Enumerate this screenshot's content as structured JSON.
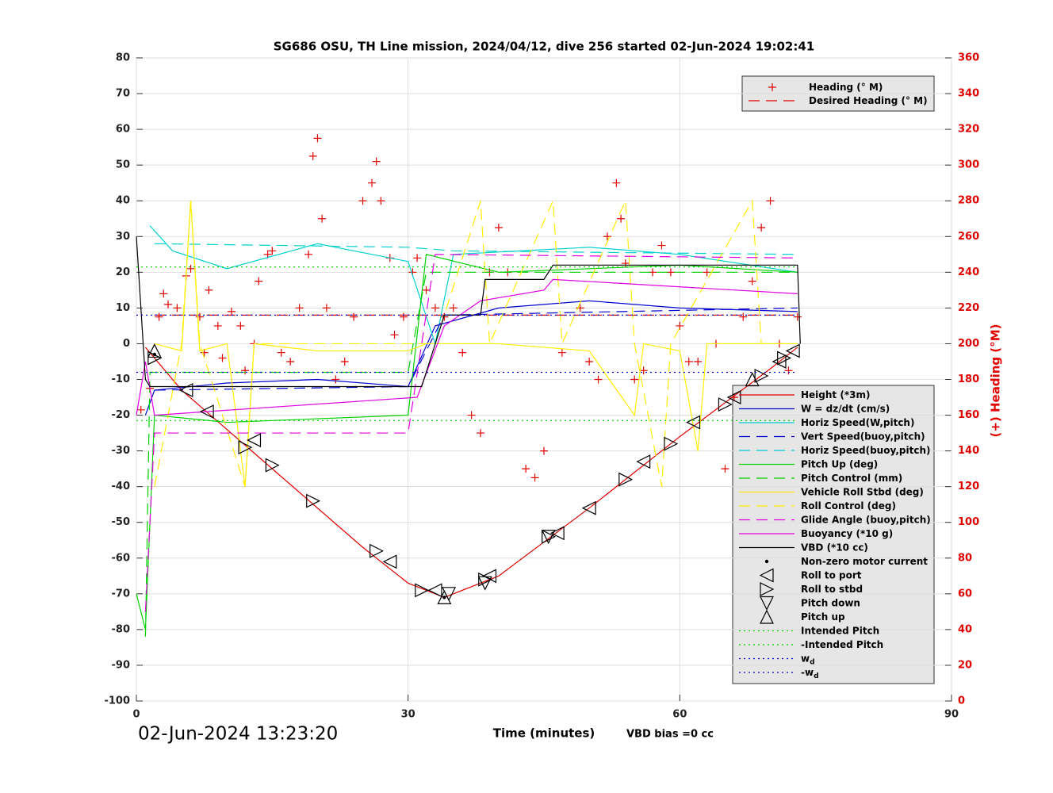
{
  "chart_data": {
    "type": "line",
    "title": "SG686 OSU, TH Line mission, 2024/04/12, dive 256 started 02-Jun-2024 19:02:41",
    "x_label": "Time (minutes)",
    "y2_label": "(+) Heading (°M)",
    "timestamp": "02-Jun-2024 13:23:20",
    "note": "VBD bias =0 cc",
    "xlim": [
      0,
      90
    ],
    "xticks": [
      0,
      30,
      60,
      90
    ],
    "ylim": [
      -100,
      80
    ],
    "yticks": [
      -100,
      -90,
      -80,
      -70,
      -60,
      -50,
      -40,
      -30,
      -20,
      -10,
      0,
      10,
      20,
      30,
      40,
      50,
      60,
      70,
      80
    ],
    "y2lim": [
      0,
      360
    ],
    "y2ticks": [
      0,
      20,
      40,
      60,
      80,
      100,
      120,
      140,
      160,
      180,
      200,
      220,
      240,
      260,
      280,
      300,
      320,
      340,
      360
    ],
    "grid": true,
    "series": [
      {
        "name": "Heading (° M)",
        "color": "#e00000",
        "style": "markers",
        "marker": "plus",
        "axis": "y2",
        "x": [
          0.5,
          1.5,
          2.5,
          3,
          3.5,
          4.5,
          5.5,
          6,
          7,
          7.5,
          8,
          9,
          9.5,
          10.5,
          11.5,
          12,
          13,
          13.5,
          14.5,
          15,
          16,
          17,
          18,
          19,
          19.5,
          20,
          20.5,
          21,
          22,
          23,
          24,
          25,
          26,
          26.5,
          27,
          28,
          28.5,
          29.5,
          30.5,
          31,
          32,
          33,
          34,
          35,
          36,
          37,
          38,
          39,
          40,
          41,
          43,
          44,
          45,
          47,
          49,
          50,
          51,
          52,
          53,
          53.5,
          54,
          55,
          56,
          57,
          58,
          59,
          60,
          61,
          62,
          63,
          64,
          65,
          66,
          67,
          68,
          69,
          70,
          71,
          72,
          73
        ],
        "values": [
          163,
          175,
          215,
          228,
          222,
          220,
          238,
          242,
          215,
          195,
          230,
          210,
          192,
          218,
          210,
          185,
          200,
          235,
          250,
          252,
          195,
          190,
          220,
          250,
          305,
          315,
          270,
          220,
          180,
          190,
          215,
          280,
          290,
          302,
          280,
          248,
          205,
          215,
          240,
          248,
          230,
          220,
          215,
          220,
          195,
          160,
          150,
          240,
          265,
          240,
          130,
          125,
          140,
          195,
          220,
          190,
          180,
          260,
          290,
          270,
          245,
          180,
          185,
          240,
          255,
          240,
          210,
          190,
          190,
          240,
          200,
          130,
          170,
          215,
          235,
          265,
          280,
          200,
          185,
          215
        ]
      },
      {
        "name": "Desired Heading (° M)",
        "color": "#e00000",
        "style": "dashed",
        "axis": "y2",
        "x": [
          2,
          73
        ],
        "values": [
          216,
          216
        ]
      },
      {
        "name": "Height (*3m)",
        "color": "#e00000",
        "style": "solid",
        "x": [
          1,
          5,
          15,
          25,
          30,
          34,
          40,
          50,
          60,
          70,
          73
        ],
        "values": [
          -1,
          -13,
          -35,
          -57,
          -67,
          -71,
          -65,
          -46,
          -26,
          -7,
          -1
        ]
      },
      {
        "name": "W = dz/dt (cm/s)",
        "color": "#0000d0",
        "style": "solid",
        "x": [
          1,
          2,
          10,
          20,
          30,
          33,
          40,
          50,
          60,
          73
        ],
        "values": [
          -20,
          -13,
          -11,
          -10,
          -12,
          5,
          10,
          12,
          10,
          9
        ]
      },
      {
        "name": "Horiz Speed(W,pitch)",
        "color": "#00d0d0",
        "style": "solid",
        "x": [
          1.5,
          4,
          10,
          20,
          30,
          33,
          35,
          50,
          60,
          73
        ],
        "values": [
          33,
          26,
          21,
          28,
          23,
          0,
          25,
          27,
          25,
          20
        ]
      },
      {
        "name": "Vert Speed(buoy,pitch)",
        "color": "#0000d0",
        "style": "dashed",
        "x": [
          2,
          30,
          34,
          73
        ],
        "values": [
          -13,
          -12,
          8,
          10
        ]
      },
      {
        "name": "Horiz Speed(buoy,pitch)",
        "color": "#00d0d0",
        "style": "dashed",
        "x": [
          2,
          30,
          35,
          73
        ],
        "values": [
          28,
          27,
          26,
          25
        ]
      },
      {
        "name": "Pitch Up (deg)",
        "color": "#00d000",
        "style": "solid",
        "x": [
          0,
          1,
          2,
          10,
          30,
          32,
          40,
          50,
          60,
          73
        ],
        "values": [
          -70,
          -80,
          -20,
          -22,
          -20,
          25,
          20,
          21,
          22,
          20
        ]
      },
      {
        "name": "Pitch Control (mm)",
        "color": "#00d000",
        "style": "dashed",
        "x": [
          1,
          1.5,
          30,
          32,
          73
        ],
        "values": [
          -82,
          -8,
          -8,
          20,
          20
        ]
      },
      {
        "name": "Vehicle Roll Stbd (deg)",
        "color": "#ffee00",
        "style": "solid",
        "x": [
          2,
          5,
          6,
          7,
          10,
          12,
          13,
          20,
          30,
          32,
          40,
          50,
          55,
          56,
          60,
          62,
          63,
          73
        ],
        "values": [
          0,
          -2,
          40,
          -2,
          0,
          -40,
          0,
          -2,
          -2,
          0,
          0,
          -2,
          -20,
          0,
          -2,
          -30,
          0,
          0
        ]
      },
      {
        "name": "Roll Control (deg)",
        "color": "#ffee00",
        "style": "dashed",
        "x": [
          2,
          5,
          6,
          7,
          12,
          13,
          33,
          38,
          39,
          46,
          47,
          54,
          55,
          58,
          59,
          68,
          69,
          73
        ],
        "values": [
          -40,
          0,
          40,
          0,
          -40,
          0,
          0,
          40,
          0,
          40,
          0,
          40,
          0,
          -40,
          0,
          40,
          0,
          0
        ]
      },
      {
        "name": "Glide Angle (buoy,pitch)",
        "color": "#e000e0",
        "style": "dashed",
        "x": [
          1,
          2,
          30,
          33,
          73
        ],
        "values": [
          -75,
          -25,
          -25,
          25,
          24
        ]
      },
      {
        "name": "Buoyancy (*10 g)",
        "color": "#e000e0",
        "style": "solid",
        "x": [
          0,
          1,
          2,
          31,
          34,
          38,
          45,
          46,
          73
        ],
        "values": [
          -20,
          -5,
          -20,
          -15,
          5,
          12,
          15,
          18,
          14
        ]
      },
      {
        "name": "VBD (*10 cc)",
        "color": "#000000",
        "style": "solid",
        "x": [
          0,
          1,
          1.5,
          31.5,
          34,
          38,
          38.5,
          45,
          46,
          73,
          73.3
        ],
        "values": [
          30,
          -10,
          -12,
          -12,
          8,
          8,
          18,
          18,
          22,
          22,
          0
        ]
      },
      {
        "name": "Non-zero motor current",
        "color": "#000000",
        "style": "markers",
        "marker": "dot",
        "x": [
          2,
          34
        ],
        "values": [
          -3,
          -71
        ]
      },
      {
        "name": "Roll to port",
        "color": "#000000",
        "style": "markers",
        "marker": "tri-left",
        "x": [
          5.5,
          7.8,
          13,
          28,
          33,
          39,
          46.5,
          50,
          56,
          61.5,
          66,
          71,
          72.5
        ],
        "values": [
          -13,
          -19,
          -27,
          -61,
          -69,
          -65,
          -53,
          -46,
          -33,
          -22,
          -15,
          -5,
          -2
        ]
      },
      {
        "name": "Roll to stbd",
        "color": "#000000",
        "style": "markers",
        "marker": "tri-right",
        "x": [
          2,
          12,
          15,
          19.5,
          26.5,
          31.5,
          38.5,
          45.5,
          54,
          59,
          65,
          69,
          71.5
        ],
        "values": [
          -4,
          -29,
          -34,
          -44,
          -58,
          -69,
          -66,
          -54,
          -38,
          -28,
          -17,
          -9,
          -4
        ]
      },
      {
        "name": "Pitch down",
        "color": "#000000",
        "style": "markers",
        "marker": "tri-down",
        "x": [
          34.5,
          38.5,
          45.5
        ],
        "values": [
          -70,
          -67,
          -54
        ]
      },
      {
        "name": "Pitch up",
        "color": "#000000",
        "style": "markers",
        "marker": "tri-up",
        "x": [
          2,
          34,
          68
        ],
        "values": [
          -2,
          -71,
          -10
        ]
      },
      {
        "name": "Intended Pitch",
        "color": "#00d000",
        "style": "dotted",
        "x": [
          0,
          73
        ],
        "values": [
          21.5,
          21.5
        ]
      },
      {
        "name": "-Intended Pitch",
        "color": "#00d000",
        "style": "dotted",
        "x": [
          0,
          73
        ],
        "values": [
          -21.5,
          -21.5
        ]
      },
      {
        "name": "w",
        "subscript": "d",
        "color": "#0000d0",
        "style": "dotted",
        "x": [
          0,
          73
        ],
        "values": [
          8,
          8
        ]
      },
      {
        "name": "-w",
        "subscript": "d",
        "color": "#0000d0",
        "style": "dotted",
        "x": [
          0,
          73
        ],
        "values": [
          -8,
          -8
        ]
      }
    ]
  }
}
